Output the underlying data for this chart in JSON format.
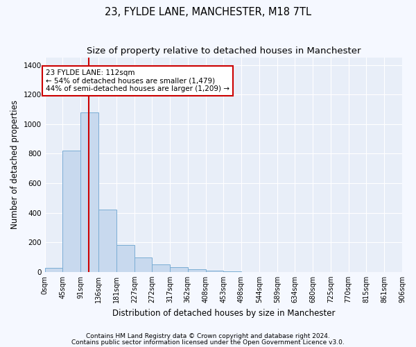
{
  "title": "23, FYLDE LANE, MANCHESTER, M18 7TL",
  "subtitle": "Size of property relative to detached houses in Manchester",
  "xlabel": "Distribution of detached houses by size in Manchester",
  "ylabel": "Number of detached properties",
  "footer_line1": "Contains HM Land Registry data © Crown copyright and database right 2024.",
  "footer_line2": "Contains public sector information licensed under the Open Government Licence v3.0.",
  "bar_values": [
    25,
    820,
    1080,
    420,
    180,
    100,
    50,
    30,
    18,
    8,
    2,
    0,
    0,
    0,
    0,
    0,
    0,
    0,
    0,
    0
  ],
  "bar_edges": [
    0,
    45,
    91,
    136,
    181,
    227,
    272,
    317,
    362,
    408,
    453,
    498,
    544,
    589,
    634,
    680,
    725,
    770,
    815,
    861,
    906
  ],
  "tick_labels": [
    "0sqm",
    "45sqm",
    "91sqm",
    "136sqm",
    "181sqm",
    "227sqm",
    "272sqm",
    "317sqm",
    "362sqm",
    "408sqm",
    "453sqm",
    "498sqm",
    "544sqm",
    "589sqm",
    "634sqm",
    "680sqm",
    "725sqm",
    "770sqm",
    "815sqm",
    "861sqm",
    "906sqm"
  ],
  "bar_color": "#c8d9ee",
  "bar_edgecolor": "#7aadd4",
  "property_line_x": 112,
  "property_line_color": "#cc0000",
  "annotation_text": "23 FYLDE LANE: 112sqm\n← 54% of detached houses are smaller (1,479)\n44% of semi-detached houses are larger (1,209) →",
  "annotation_box_color": "#cc0000",
  "ylim": [
    0,
    1450
  ],
  "fig_background": "#f5f8ff",
  "plot_background": "#e8eef8",
  "grid_color": "#ffffff",
  "title_fontsize": 10.5,
  "subtitle_fontsize": 9.5,
  "ylabel_fontsize": 8.5,
  "xlabel_fontsize": 8.5,
  "tick_fontsize": 7,
  "footer_fontsize": 6.5
}
